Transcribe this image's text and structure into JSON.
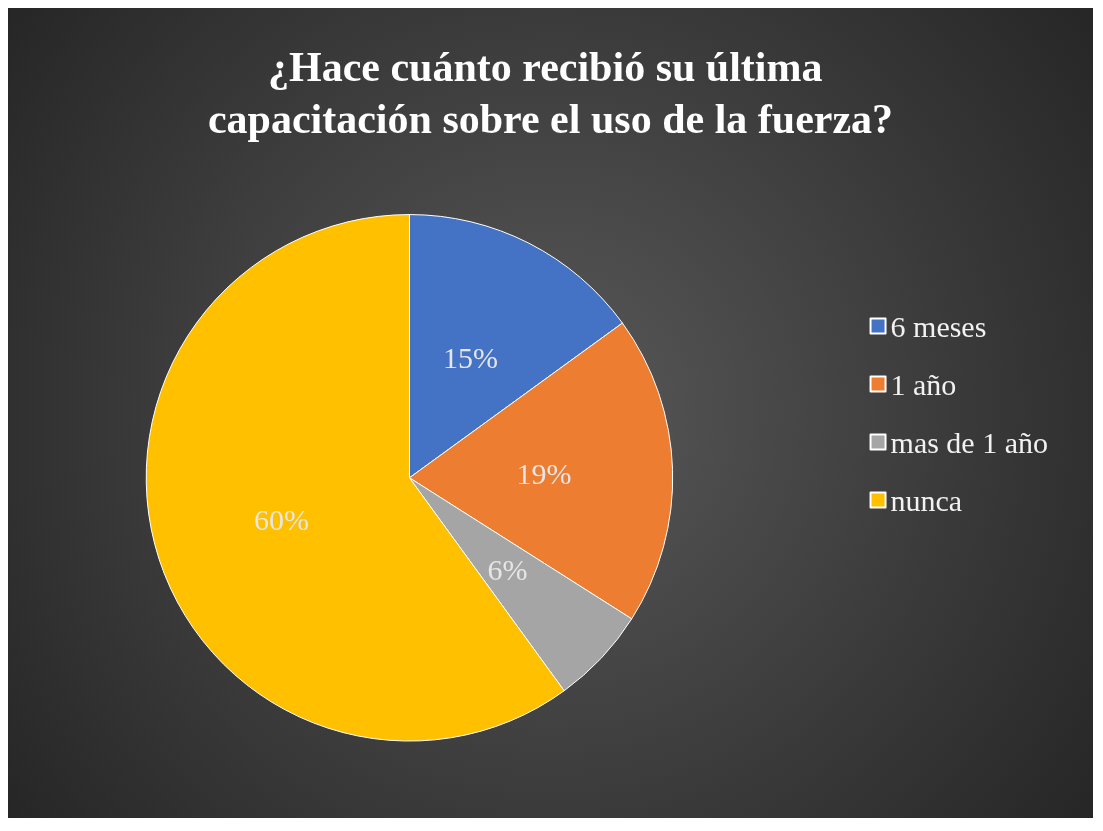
{
  "chart_data": {
    "type": "pie",
    "title": "¿Hace cuánto recibió su última capacitación sobre el uso de la fuerza?",
    "categories": [
      "6 meses",
      "1 año",
      "mas de 1 año",
      "nunca"
    ],
    "values": [
      15,
      19,
      6,
      60
    ],
    "colors": [
      "#4472c4",
      "#ed7d31",
      "#a5a5a5",
      "#ffc000"
    ],
    "value_labels": [
      "15%",
      "19%",
      "6%",
      "60%"
    ],
    "legend": "right"
  }
}
